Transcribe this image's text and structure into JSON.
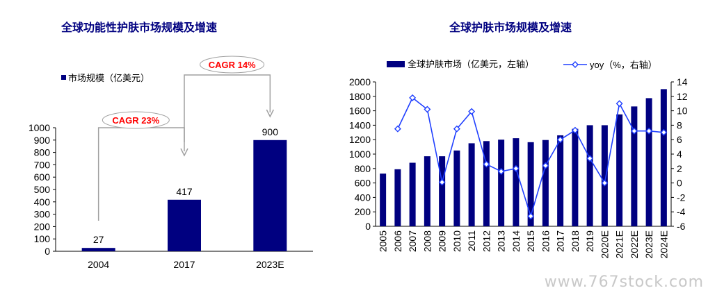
{
  "left_title": "全球功能性护肤市场规模及增速",
  "right_title": "全球护肤市场规模及增速",
  "watermark": "www.767stock.com",
  "colors": {
    "bar": "#000080",
    "line": "#1f3fff",
    "title": "#000080",
    "cagr": "#ff0000"
  },
  "chart_data": [
    {
      "type": "bar",
      "title": "全球功能性护肤市场规模及增速",
      "legend": "市场规模（亿美元）",
      "categories": [
        "2004",
        "2017",
        "2023E"
      ],
      "values": [
        27,
        417,
        900
      ],
      "data_labels": [
        "27",
        "417",
        "900"
      ],
      "ylim": [
        0,
        1000
      ],
      "yticks": [
        0,
        100,
        200,
        300,
        400,
        500,
        600,
        700,
        800,
        900,
        1000
      ],
      "annotations": [
        {
          "text": "CAGR 23%",
          "from": "2004",
          "to": "2017"
        },
        {
          "text": "CAGR 14%",
          "from": "2017",
          "to": "2023E"
        }
      ]
    },
    {
      "type": "bar",
      "title": "全球护肤市场规模及增速",
      "categories": [
        "2005",
        "2006",
        "2007",
        "2008",
        "2009",
        "2010",
        "2011",
        "2012",
        "2013",
        "2014",
        "2015",
        "2016",
        "2017",
        "2018",
        "2019",
        "2020E",
        "2021E",
        "2022E",
        "2023E",
        "2024E"
      ],
      "series": [
        {
          "name": "全球护肤市场（亿美元，左轴）",
          "type": "bar",
          "axis": "left",
          "values": [
            730,
            790,
            880,
            970,
            970,
            1050,
            1150,
            1180,
            1200,
            1220,
            1165,
            1195,
            1260,
            1350,
            1400,
            1400,
            1550,
            1660,
            1775,
            1900
          ]
        },
        {
          "name": "yoy（%，右轴）",
          "type": "line",
          "axis": "right",
          "values": [
            null,
            7.5,
            11.8,
            10.2,
            0.1,
            7.5,
            9.9,
            2.6,
            1.6,
            2.0,
            -4.6,
            2.4,
            6.0,
            7.3,
            3.4,
            0.0,
            11.0,
            7.2,
            7.2,
            7.0
          ]
        }
      ],
      "ylim_left": [
        0,
        2000
      ],
      "yticks_left": [
        0,
        200,
        400,
        600,
        800,
        1000,
        1200,
        1400,
        1600,
        1800,
        2000
      ],
      "ylim_right": [
        -6,
        14
      ],
      "yticks_right": [
        -6,
        -4,
        -2,
        0,
        2,
        4,
        6,
        8,
        10,
        12,
        14
      ],
      "legend_placement": "top"
    }
  ]
}
